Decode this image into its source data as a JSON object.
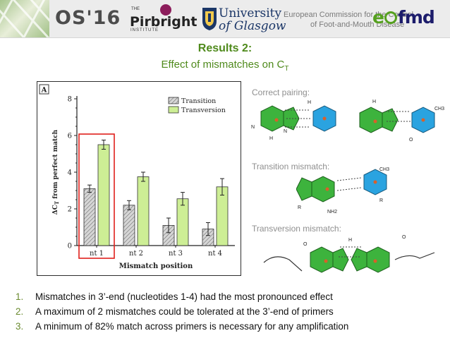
{
  "header": {
    "conference": "OS'16",
    "pirbright": {
      "the": "THE",
      "name": "Pirbright",
      "institute": "INSTITUTE"
    },
    "glasgow": {
      "line1": "University",
      "line2": "of Glasgow"
    },
    "commission": {
      "line1": "European Commission for the Control",
      "line2": "of Foot-and-Mouth Disease"
    },
    "eufmd": {
      "prefix": "e",
      "suffix": "fmd"
    }
  },
  "title": "Results 2:",
  "subtitle": {
    "text": "Effect of mismatches on C",
    "sub": "T"
  },
  "chart_data": {
    "type": "bar",
    "panel_label": "A",
    "categories": [
      "nt 1",
      "nt 2",
      "nt 3",
      "nt 4"
    ],
    "series": [
      {
        "name": "Transition",
        "values": [
          3.1,
          2.2,
          1.1,
          0.9
        ],
        "errors": [
          0.2,
          0.25,
          0.4,
          0.35
        ],
        "color": "#bdbdbd"
      },
      {
        "name": "Transversion",
        "values": [
          5.5,
          3.75,
          2.55,
          3.2
        ],
        "errors": [
          0.25,
          0.25,
          0.35,
          0.45
        ],
        "color": "#cdee95"
      }
    ],
    "xlabel": "Mismatch position",
    "ylabel_main": "ΔC",
    "ylabel_sub": "T",
    "ylabel_rest": " from perfect match",
    "ylim": [
      0,
      8
    ],
    "yticks": [
      "0",
      "2",
      "4",
      "6",
      "8"
    ],
    "legend": "top-right",
    "highlight": "nt 1",
    "highlight_color": "#e0201c"
  },
  "pairing": {
    "correct": "Correct pairing:",
    "transition": "Transition mismatch:",
    "transversion": "Transversion mismatch:",
    "atoms": {
      "N": "N",
      "H": "H",
      "O": "O",
      "R": "R",
      "CH3": "CH3",
      "NH2": "NH2"
    },
    "colors": {
      "purine": "#3db33d",
      "pyrimidine": "#2aa3e0",
      "ring_dot": "#d9602a"
    }
  },
  "points": [
    {
      "num": "1.",
      "text": "Mismatches in  3’-end (nucleotides 1-4) had the most pronounced effect"
    },
    {
      "num": "2.",
      "text": "A maximum of 2 mismatches could be tolerated at the 3’-end of primers"
    },
    {
      "num": "3.",
      "text": "A minimum of 82% match across primers is necessary for any amplification"
    }
  ]
}
